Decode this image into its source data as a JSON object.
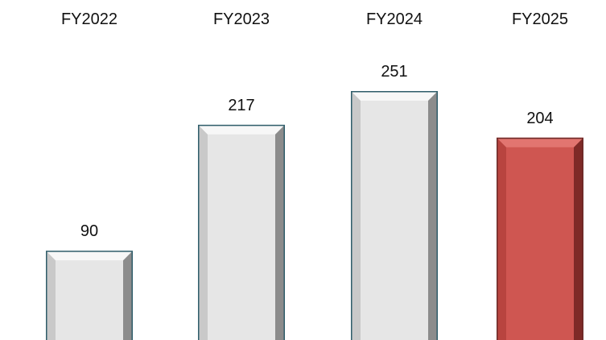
{
  "chart_data": {
    "type": "bar",
    "categories": [
      "FY2022",
      "FY2023",
      "FY2024",
      "FY2025"
    ],
    "values": [
      90,
      217,
      251,
      204
    ],
    "value_labels": [
      "90",
      "217",
      "251",
      "204"
    ],
    "title": "",
    "xlabel": "",
    "ylabel": "",
    "ylim": [
      0,
      251
    ],
    "grid": false,
    "legend": "none",
    "category_axis_position": "top",
    "colors": {
      "default_face": "#e6e6e6",
      "default_bevel_light": "#f7f7f7",
      "default_bevel_mid": "#c9c9c9",
      "default_bevel_dark": "#8c8c8c",
      "default_outline": "#2f5d6a",
      "highlight_face": "#cf5651",
      "highlight_bevel_light": "#e27570",
      "highlight_bevel_mid": "#b8443f",
      "highlight_bevel_dark": "#7f2a27",
      "highlight_outline": "#6a2a28"
    },
    "highlight_index": 3
  }
}
